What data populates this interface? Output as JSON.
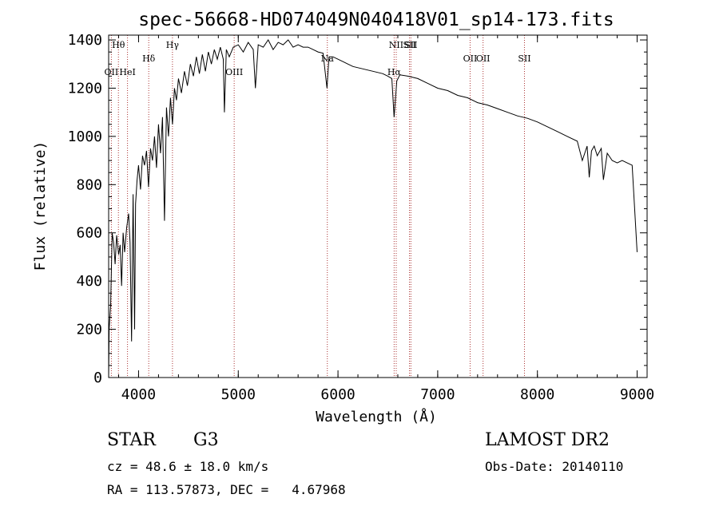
{
  "chart_data": {
    "type": "line",
    "title": "spec-56668-HD074049N040418V01_sp14-173.fits",
    "xlabel": "Wavelength (Å)",
    "ylabel": "Flux (relative)",
    "xlim": [
      3700,
      9100
    ],
    "ylim": [
      0,
      1420
    ],
    "x_ticks": [
      4000,
      5000,
      6000,
      7000,
      8000,
      9000
    ],
    "y_ticks": [
      0,
      200,
      400,
      600,
      800,
      1000,
      1200,
      1400
    ],
    "grid": false,
    "series": [
      {
        "x": [
          3700,
          3705,
          3720,
          3735,
          3750,
          3765,
          3780,
          3800,
          3815,
          3830,
          3845,
          3860,
          3880,
          3900,
          3915,
          3930,
          3945,
          3960,
          3970,
          3985,
          4000,
          4020,
          4040,
          4060,
          4080,
          4100,
          4120,
          4140,
          4160,
          4180,
          4200,
          4220,
          4240,
          4260,
          4280,
          4300,
          4320,
          4340,
          4360,
          4380,
          4400,
          4430,
          4460,
          4490,
          4520,
          4550,
          4580,
          4610,
          4640,
          4670,
          4700,
          4730,
          4760,
          4790,
          4820,
          4850,
          4861,
          4880,
          4910,
          4950,
          5000,
          5050,
          5100,
          5150,
          5172,
          5200,
          5250,
          5300,
          5350,
          5400,
          5450,
          5500,
          5550,
          5600,
          5650,
          5700,
          5750,
          5800,
          5850,
          5890,
          5910,
          5950,
          6000,
          6050,
          6100,
          6150,
          6200,
          6250,
          6300,
          6350,
          6400,
          6450,
          6500,
          6540,
          6563,
          6590,
          6620,
          6700,
          6800,
          6900,
          7000,
          7100,
          7200,
          7300,
          7400,
          7500,
          7600,
          7700,
          7800,
          7900,
          8000,
          8100,
          8200,
          8300,
          8400,
          8450,
          8498,
          8520,
          8542,
          8570,
          8600,
          8640,
          8662,
          8700,
          8750,
          8800,
          8850,
          8900,
          8950,
          9000
        ],
        "y": [
          0,
          200,
          300,
          600,
          560,
          470,
          590,
          510,
          550,
          380,
          600,
          520,
          620,
          680,
          560,
          150,
          760,
          200,
          720,
          820,
          880,
          780,
          920,
          880,
          940,
          790,
          950,
          900,
          1000,
          870,
          1050,
          930,
          1080,
          650,
          1120,
          1000,
          1160,
          1050,
          1200,
          1150,
          1240,
          1180,
          1270,
          1210,
          1300,
          1250,
          1330,
          1260,
          1340,
          1270,
          1350,
          1300,
          1360,
          1320,
          1370,
          1320,
          1100,
          1360,
          1330,
          1370,
          1380,
          1350,
          1390,
          1360,
          1200,
          1380,
          1370,
          1400,
          1360,
          1390,
          1380,
          1400,
          1370,
          1380,
          1370,
          1370,
          1360,
          1350,
          1345,
          1200,
          1330,
          1330,
          1320,
          1310,
          1300,
          1290,
          1285,
          1280,
          1275,
          1270,
          1265,
          1260,
          1250,
          1240,
          1080,
          1230,
          1255,
          1250,
          1240,
          1220,
          1200,
          1190,
          1170,
          1160,
          1140,
          1130,
          1115,
          1100,
          1085,
          1075,
          1060,
          1040,
          1020,
          1000,
          980,
          900,
          960,
          830,
          940,
          960,
          920,
          950,
          820,
          930,
          900,
          890,
          900,
          890,
          880,
          520
        ]
      }
    ],
    "line_markers": [
      {
        "label": "OII",
        "x": 3727
      },
      {
        "label": "Hθ",
        "x": 3798
      },
      {
        "label": "HeI",
        "x": 3889
      },
      {
        "label": "Hδ",
        "x": 4102
      },
      {
        "label": "Hγ",
        "x": 4340
      },
      {
        "label": "OIII",
        "x": 4959
      },
      {
        "label": "Na",
        "x": 5893
      },
      {
        "label": "NII",
        "x": 6584
      },
      {
        "label": "Hα",
        "x": 6563
      },
      {
        "label": "SII",
        "x": 6717
      },
      {
        "label": "SII",
        "x": 6731
      },
      {
        "label": "OII",
        "x": 7325
      },
      {
        "label": "OII",
        "x": 7455
      },
      {
        "label": "SII",
        "x": 7870
      }
    ]
  },
  "info": {
    "object_type": "STAR",
    "subclass": "G3",
    "survey": "LAMOST DR2",
    "cz_text": "cz = 48.6 ± 18.0 km/s",
    "obs_date_text": "Obs-Date: 20140110",
    "radec_text": "RA = 113.57873, DEC =   4.67968"
  }
}
